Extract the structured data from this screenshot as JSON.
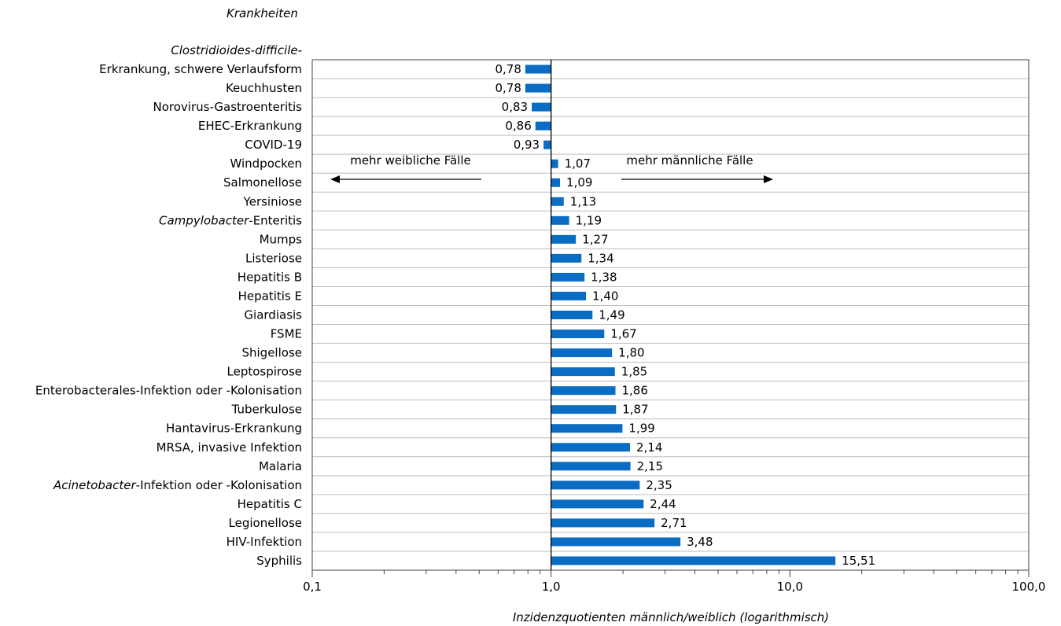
{
  "chart_data": {
    "type": "bar",
    "orientation": "horizontal",
    "xscale": "log",
    "xlim": [
      0.1,
      100.0
    ],
    "reference_line": 1.0,
    "ylabel": "Krankheiten",
    "xlabel": "Inzidenzquotienten männlich/weiblich (logarithmisch)",
    "xticks": [
      0.1,
      1.0,
      10.0,
      100.0
    ],
    "xtick_labels": [
      "0,1",
      "1,0",
      "10,0",
      "100,0"
    ],
    "grid": "horizontal",
    "bar_color": "#0a6cc3",
    "annotations": {
      "left": "mehr weibliche Fälle",
      "right": "mehr männliche Fälle"
    },
    "categories": [
      {
        "pre": "",
        "italic": "Clostridioides-difficile-",
        "post": "",
        "line2": "Erkrankung, schwere Verlaufsform"
      },
      {
        "pre": "Keuchhusten",
        "italic": "",
        "post": ""
      },
      {
        "pre": "Norovirus-Gastroenteritis",
        "italic": "",
        "post": ""
      },
      {
        "pre": "EHEC-Erkrankung",
        "italic": "",
        "post": ""
      },
      {
        "pre": "COVID-19",
        "italic": "",
        "post": ""
      },
      {
        "pre": "Windpocken",
        "italic": "",
        "post": ""
      },
      {
        "pre": "Salmonellose",
        "italic": "",
        "post": ""
      },
      {
        "pre": "Yersiniose",
        "italic": "",
        "post": ""
      },
      {
        "pre": "",
        "italic": "Campylobacter",
        "post": "-Enteritis"
      },
      {
        "pre": "Mumps",
        "italic": "",
        "post": ""
      },
      {
        "pre": "Listeriose",
        "italic": "",
        "post": ""
      },
      {
        "pre": "Hepatitis B",
        "italic": "",
        "post": ""
      },
      {
        "pre": "Hepatitis E",
        "italic": "",
        "post": ""
      },
      {
        "pre": "Giardiasis",
        "italic": "",
        "post": ""
      },
      {
        "pre": "FSME",
        "italic": "",
        "post": ""
      },
      {
        "pre": "Shigellose",
        "italic": "",
        "post": ""
      },
      {
        "pre": "Leptospirose",
        "italic": "",
        "post": ""
      },
      {
        "pre": "Enterobacterales-Infektion oder -Kolonisation",
        "italic": "",
        "post": ""
      },
      {
        "pre": "Tuberkulose",
        "italic": "",
        "post": ""
      },
      {
        "pre": "Hantavirus-Erkrankung",
        "italic": "",
        "post": ""
      },
      {
        "pre": "MRSA, invasive Infektion",
        "italic": "",
        "post": ""
      },
      {
        "pre": "Malaria",
        "italic": "",
        "post": ""
      },
      {
        "pre": "",
        "italic": "Acinetobacter",
        "post": "-Infektion oder -Kolonisation"
      },
      {
        "pre": "Hepatitis C",
        "italic": "",
        "post": ""
      },
      {
        "pre": "Legionellose",
        "italic": "",
        "post": ""
      },
      {
        "pre": "HIV-Infektion",
        "italic": "",
        "post": ""
      },
      {
        "pre": "Syphilis",
        "italic": "",
        "post": ""
      }
    ],
    "values": [
      0.78,
      0.78,
      0.83,
      0.86,
      0.93,
      1.07,
      1.09,
      1.13,
      1.19,
      1.27,
      1.34,
      1.38,
      1.4,
      1.49,
      1.67,
      1.8,
      1.85,
      1.86,
      1.87,
      1.99,
      2.14,
      2.15,
      2.35,
      2.44,
      2.71,
      3.48,
      15.51
    ],
    "value_labels": [
      "0,78",
      "0,78",
      "0,83",
      "0,86",
      "0,93",
      "1,07",
      "1,09",
      "1,13",
      "1,19",
      "1,27",
      "1,34",
      "1,38",
      "1,40",
      "1,49",
      "1,67",
      "1,80",
      "1,85",
      "1,86",
      "1,87",
      "1,99",
      "2,14",
      "2,15",
      "2,35",
      "2,44",
      "2,71",
      "3,48",
      "15,51"
    ]
  }
}
